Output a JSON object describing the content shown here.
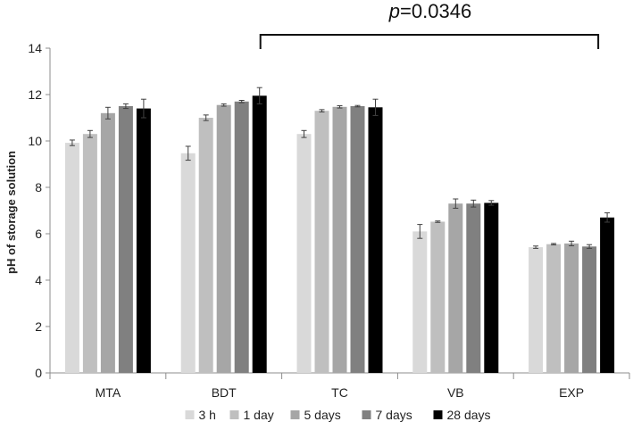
{
  "chart_data": {
    "type": "bar",
    "ylabel": "pH of storage solution",
    "xlabel": "",
    "ylim": [
      0,
      14
    ],
    "yticks": [
      0,
      2,
      4,
      6,
      8,
      10,
      12,
      14
    ],
    "grid": false,
    "legend_position": "bottom",
    "categories": [
      "MTA",
      "BDT",
      "TC",
      "VB",
      "EXP"
    ],
    "series": [
      {
        "name": "3 h",
        "color": "#d9d9d9",
        "values": [
          9.92,
          9.47,
          10.3,
          6.1,
          5.42
        ],
        "errors": [
          0.12,
          0.3,
          0.15,
          0.3,
          0.05
        ]
      },
      {
        "name": "1 day",
        "color": "#bfbfbf",
        "values": [
          10.3,
          11.0,
          11.3,
          6.52,
          5.55
        ],
        "errors": [
          0.15,
          0.12,
          0.05,
          0.03,
          0.03
        ]
      },
      {
        "name": "5 days",
        "color": "#a6a6a6",
        "values": [
          11.2,
          11.55,
          11.47,
          7.3,
          5.58
        ],
        "errors": [
          0.25,
          0.05,
          0.05,
          0.2,
          0.1
        ]
      },
      {
        "name": "7 days",
        "color": "#808080",
        "values": [
          11.5,
          11.7,
          11.5,
          7.3,
          5.45
        ],
        "errors": [
          0.1,
          0.05,
          0.03,
          0.15,
          0.08
        ]
      },
      {
        "name": "28 days",
        "color": "#000000",
        "values": [
          11.4,
          11.95,
          11.45,
          7.33,
          6.7
        ],
        "errors": [
          0.4,
          0.35,
          0.35,
          0.1,
          0.2
        ]
      }
    ],
    "annotation": {
      "text_prefix": "p",
      "text_value": "=0.0346",
      "from_category": "BDT",
      "to_category": "EXP"
    }
  }
}
